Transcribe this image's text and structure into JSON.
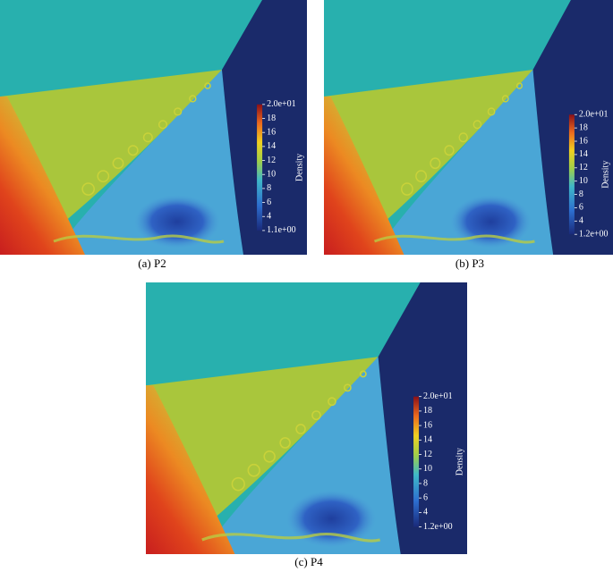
{
  "panels": [
    {
      "caption": "(a) P2",
      "colorbar": {
        "title": "Density",
        "max": "2.0e+01",
        "ticks": [
          "18",
          "16",
          "14",
          "12",
          "10",
          "8",
          "6",
          "4"
        ],
        "min": "1.1e+00"
      }
    },
    {
      "caption": "(b) P3",
      "colorbar": {
        "title": "Density",
        "max": "2.0e+01",
        "ticks": [
          "18",
          "16",
          "14",
          "12",
          "10",
          "8",
          "6",
          "4"
        ],
        "min": "1.2e+00"
      }
    },
    {
      "caption": "(c) P4",
      "colorbar": {
        "title": "Density",
        "max": "2.0e+01",
        "ticks": [
          "18",
          "16",
          "14",
          "12",
          "10",
          "8",
          "6",
          "4"
        ],
        "min": "1.2e+00"
      }
    }
  ]
}
